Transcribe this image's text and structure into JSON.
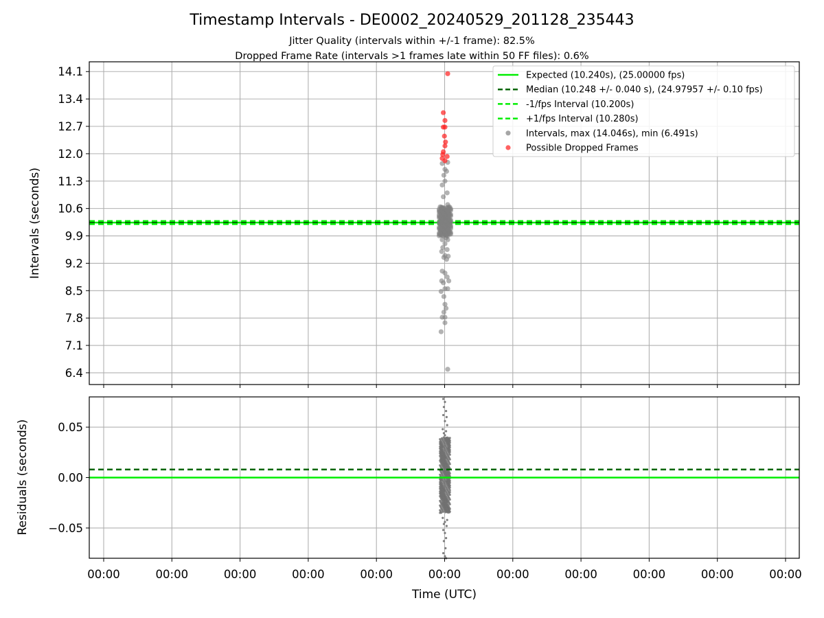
{
  "figure": {
    "title": "Timestamp Intervals - DE0002_20240529_201128_235443",
    "subtitle_1": "Jitter Quality (intervals within +/-1 frame): 82.5%",
    "subtitle_2": "Dropped Frame Rate (intervals >1 frames late within 50 FF files): 0.6%",
    "xlabel": "Time (UTC)",
    "x_tick_labels": [
      "00:00",
      "00:00",
      "00:00",
      "00:00",
      "00:00",
      "00:00",
      "00:00",
      "00:00",
      "00:00",
      "00:00",
      "00:00"
    ]
  },
  "colors": {
    "expected": "#00ee00",
    "median": "#006400",
    "fps_band": "#00ee00",
    "intervals": "#808080",
    "dropped": "#ff2020",
    "residuals": "#707070",
    "grid": "#b0b0b0"
  },
  "chart_data": [
    {
      "type": "scatter",
      "panel": "intervals",
      "ylabel": "Intervals (seconds)",
      "ylim": [
        6.1,
        14.35
      ],
      "y_ticks": [
        6.4,
        7.1,
        7.8,
        8.5,
        9.2,
        9.9,
        10.6,
        11.3,
        12.0,
        12.7,
        13.4,
        14.1
      ],
      "y_tick_labels": [
        "6.4",
        "7.1",
        "7.8",
        "8.5",
        "9.2",
        "9.9",
        "10.6",
        "11.3",
        "12.0",
        "12.7",
        "13.4",
        "14.1"
      ],
      "grid": true,
      "legend_position": "top-right",
      "reference_lines": [
        {
          "name": "Expected (10.240s), (25.00000 fps)",
          "value": 10.24,
          "style": "solid",
          "color": "#00ee00"
        },
        {
          "name": "Median (10.248 +/- 0.040 s), (24.97957 +/- 0.10 fps)",
          "value": 10.248,
          "style": "dashed",
          "color": "#006400"
        },
        {
          "name": "-1/fps Interval (10.200s)",
          "value": 10.2,
          "style": "dashed",
          "color": "#00ee00"
        },
        {
          "name": "+1/fps Interval (10.280s)",
          "value": 10.28,
          "style": "dashed",
          "color": "#00ee00"
        }
      ],
      "series": [
        {
          "name": "Intervals, max (14.046s), min (6.491s)",
          "color": "#808080",
          "points": [
            [
              -0.05,
              11.75
            ],
            [
              0.05,
              11.78
            ],
            [
              0.0,
              11.6
            ],
            [
              -0.02,
              11.45
            ],
            [
              0.03,
              11.55
            ],
            [
              -0.05,
              11.2
            ],
            [
              0.0,
              11.3
            ],
            [
              0.04,
              11.0
            ],
            [
              -0.03,
              10.9
            ],
            [
              0.05,
              10.7
            ],
            [
              -0.06,
              10.6
            ],
            [
              0.0,
              10.55
            ],
            [
              0.06,
              10.5
            ],
            [
              -0.04,
              10.45
            ],
            [
              0.02,
              10.42
            ],
            [
              -0.02,
              10.38
            ],
            [
              0.04,
              10.35
            ],
            [
              -0.06,
              10.32
            ],
            [
              0.0,
              10.3
            ],
            [
              0.06,
              10.28
            ],
            [
              -0.03,
              10.26
            ],
            [
              0.02,
              10.22
            ],
            [
              -0.05,
              10.18
            ],
            [
              0.05,
              10.15
            ],
            [
              0.0,
              10.12
            ],
            [
              -0.04,
              10.1
            ],
            [
              0.03,
              10.08
            ],
            [
              -0.02,
              10.05
            ],
            [
              0.06,
              10.02
            ],
            [
              -0.06,
              10.0
            ],
            [
              0.0,
              9.98
            ],
            [
              0.04,
              9.95
            ],
            [
              -0.03,
              9.9
            ],
            [
              0.02,
              9.85
            ],
            [
              -0.05,
              9.8
            ],
            [
              0.05,
              9.8
            ],
            [
              0.0,
              9.7
            ],
            [
              -0.04,
              9.6
            ],
            [
              0.04,
              9.55
            ],
            [
              -0.06,
              9.5
            ],
            [
              0.0,
              9.4
            ],
            [
              0.06,
              9.38
            ],
            [
              -0.02,
              9.35
            ],
            [
              0.03,
              9.3
            ],
            [
              -0.05,
              9.0
            ],
            [
              0.0,
              8.95
            ],
            [
              0.04,
              8.85
            ],
            [
              -0.06,
              8.75
            ],
            [
              0.07,
              8.75
            ],
            [
              -0.03,
              8.7
            ],
            [
              0.0,
              8.55
            ],
            [
              0.05,
              8.55
            ],
            [
              -0.07,
              8.48
            ],
            [
              -0.02,
              8.35
            ],
            [
              0.0,
              8.15
            ],
            [
              0.02,
              8.05
            ],
            [
              -0.02,
              7.95
            ],
            [
              -0.05,
              7.82
            ],
            [
              0.0,
              7.82
            ],
            [
              0.0,
              7.68
            ],
            [
              -0.07,
              7.45
            ],
            [
              0.05,
              6.49
            ]
          ]
        },
        {
          "name": "Possible Dropped Frames",
          "color": "#ff2020",
          "points": [
            [
              0.05,
              14.046
            ],
            [
              -0.03,
              13.05
            ],
            [
              0.0,
              12.85
            ],
            [
              -0.03,
              12.68
            ],
            [
              0.0,
              12.68
            ],
            [
              -0.01,
              12.45
            ],
            [
              0.01,
              12.3
            ],
            [
              0.0,
              12.2
            ],
            [
              -0.03,
              12.05
            ],
            [
              -0.04,
              11.98
            ],
            [
              0.04,
              11.93
            ],
            [
              -0.05,
              11.88
            ],
            [
              0.0,
              11.82
            ]
          ]
        }
      ]
    },
    {
      "type": "scatter",
      "panel": "residuals",
      "ylabel": "Residuals (seconds)",
      "ylim": [
        -0.08,
        0.08
      ],
      "y_ticks": [
        -0.05,
        0.0,
        0.05
      ],
      "y_tick_labels": [
        "−0.05",
        "0.00",
        "0.05"
      ],
      "grid": true,
      "reference_lines": [
        {
          "name": "Expected",
          "value": 0.0,
          "style": "solid",
          "color": "#00ee00"
        },
        {
          "name": "Median",
          "value": 0.008,
          "style": "dashed",
          "color": "#006400"
        }
      ],
      "series": [
        {
          "name": "Residuals",
          "color": "#707070",
          "core_range": [
            -0.035,
            0.04
          ],
          "points": [
            [
              -0.03,
              0.078
            ],
            [
              0.0,
              0.075
            ],
            [
              -0.02,
              0.07
            ],
            [
              0.02,
              0.066
            ],
            [
              -0.03,
              0.062
            ],
            [
              0.03,
              0.06
            ],
            [
              0.0,
              0.056
            ],
            [
              0.04,
              0.052
            ],
            [
              -0.04,
              0.048
            ],
            [
              0.02,
              0.046
            ],
            [
              -0.02,
              0.044
            ],
            [
              0.0,
              0.042
            ],
            [
              -0.04,
              -0.04
            ],
            [
              0.04,
              -0.042
            ],
            [
              0.0,
              -0.044
            ],
            [
              -0.02,
              -0.046
            ],
            [
              0.03,
              -0.048
            ],
            [
              -0.03,
              -0.052
            ],
            [
              0.0,
              -0.055
            ],
            [
              0.02,
              -0.06
            ],
            [
              -0.02,
              -0.063
            ],
            [
              0.01,
              -0.07
            ],
            [
              -0.03,
              -0.075
            ],
            [
              0.0,
              -0.078
            ],
            [
              0.02,
              -0.08
            ]
          ]
        }
      ]
    }
  ]
}
